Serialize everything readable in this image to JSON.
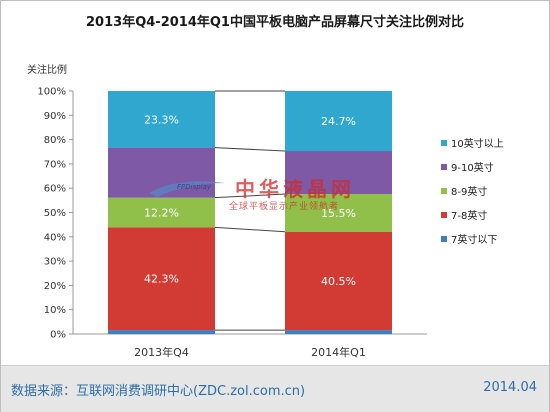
{
  "title": "2013年Q4-2014年Q1中国平板电脑产品屏幕尺寸关注比例对比",
  "footer": {
    "source": "数据来源：互联网消费调研中心(ZDC.zol.com.cn)",
    "date": "2014.04"
  },
  "watermark": {
    "title": "中华液晶网",
    "subtitle": "全球平板显示产业领航者",
    "logo_text": "FPDisplay"
  },
  "chart_data": {
    "type": "bar",
    "stacked": true,
    "title": "2013年Q4-2014年Q1中国平板电脑产品屏幕尺寸关注比例对比",
    "ylabel": "关注比例",
    "ylim": [
      0,
      100
    ],
    "yticks": [
      "0%",
      "10%",
      "20%",
      "30%",
      "40%",
      "50%",
      "60%",
      "70%",
      "80%",
      "90%",
      "100%"
    ],
    "categories": [
      "2013年Q4",
      "2014年Q1"
    ],
    "legend_position": "right",
    "series": [
      {
        "name": "7英寸以下",
        "color": "#3d7fc1",
        "values": [
          1.6,
          1.6
        ],
        "labels": [
          "",
          ""
        ]
      },
      {
        "name": "7-8英寸",
        "color": "#d23b33",
        "values": [
          42.3,
          40.5
        ],
        "labels": [
          "42.3%",
          "40.5%"
        ]
      },
      {
        "name": "8-9英寸",
        "color": "#90c04a",
        "values": [
          12.2,
          15.5
        ],
        "labels": [
          "12.2%",
          "15.5%"
        ]
      },
      {
        "name": "9-10英寸",
        "color": "#7e5aa6",
        "values": [
          20.6,
          17.7
        ],
        "labels": [
          "",
          ""
        ]
      },
      {
        "name": "10英寸以上",
        "color": "#2fa7cf",
        "values": [
          23.3,
          24.7
        ],
        "labels": [
          "23.3%",
          "24.7%"
        ]
      }
    ]
  }
}
